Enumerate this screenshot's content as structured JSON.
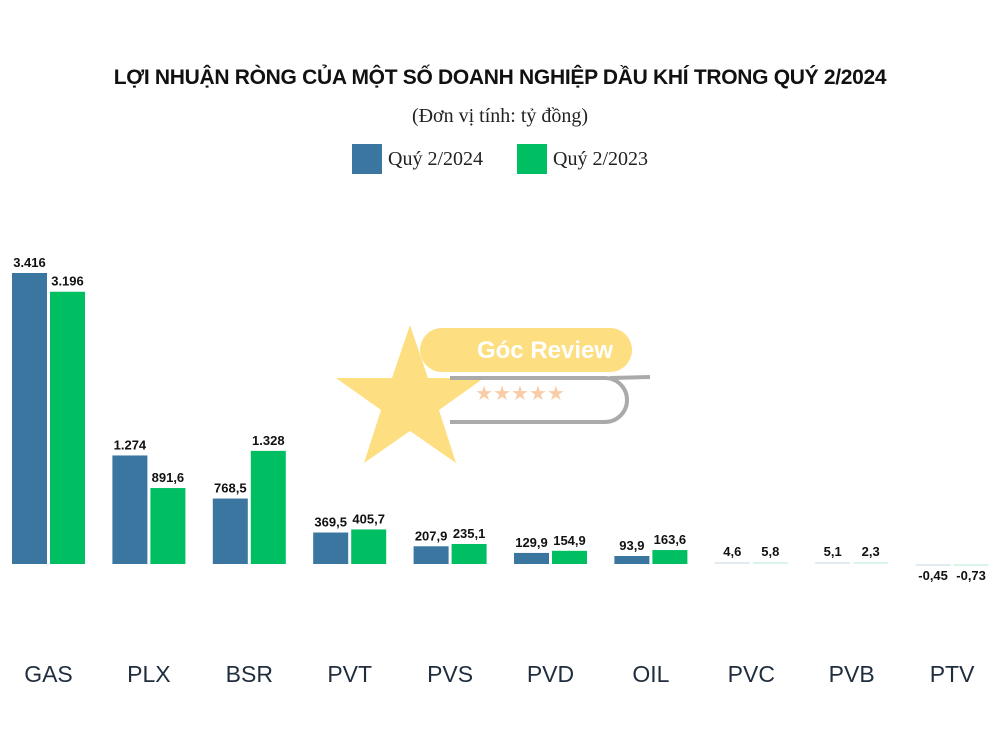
{
  "chart_data": {
    "type": "bar",
    "title": "LỢI NHUẬN RÒNG CỦA MỘT SỐ DOANH NGHIỆP DẦU KHÍ TRONG QUÝ 2/2024",
    "subtitle": "(Đơn vị tính: tỷ đồng)",
    "categories": [
      "GAS",
      "PLX",
      "BSR",
      "PVT",
      "PVS",
      "PVD",
      "OIL",
      "PVC",
      "PVB",
      "PTV"
    ],
    "series": [
      {
        "name": "Quý 2/2024",
        "color": "#3a76a0",
        "values": [
          3416,
          1274,
          768.5,
          369.5,
          207.9,
          129.9,
          93.9,
          4.6,
          5.1,
          -0.45
        ],
        "labels": [
          "3.416",
          "1.274",
          "768,5",
          "369,5",
          "207,9",
          "129,9",
          "93,9",
          "4,6",
          "5,1",
          "-0,45"
        ]
      },
      {
        "name": "Quý 2/2023",
        "color": "#00bf63",
        "values": [
          3196,
          891.6,
          1328,
          405.7,
          235.1,
          154.9,
          163.6,
          5.8,
          2.3,
          -0.73
        ],
        "labels": [
          "3.196",
          "891,6",
          "1.328",
          "405,7",
          "235,1",
          "154,9",
          "163,6",
          "5,8",
          "2,3",
          "-0,73"
        ]
      }
    ],
    "legend": "top-center",
    "grid": false,
    "y_axis_visible": false
  },
  "watermark": {
    "logo_text": "Góc Review"
  }
}
